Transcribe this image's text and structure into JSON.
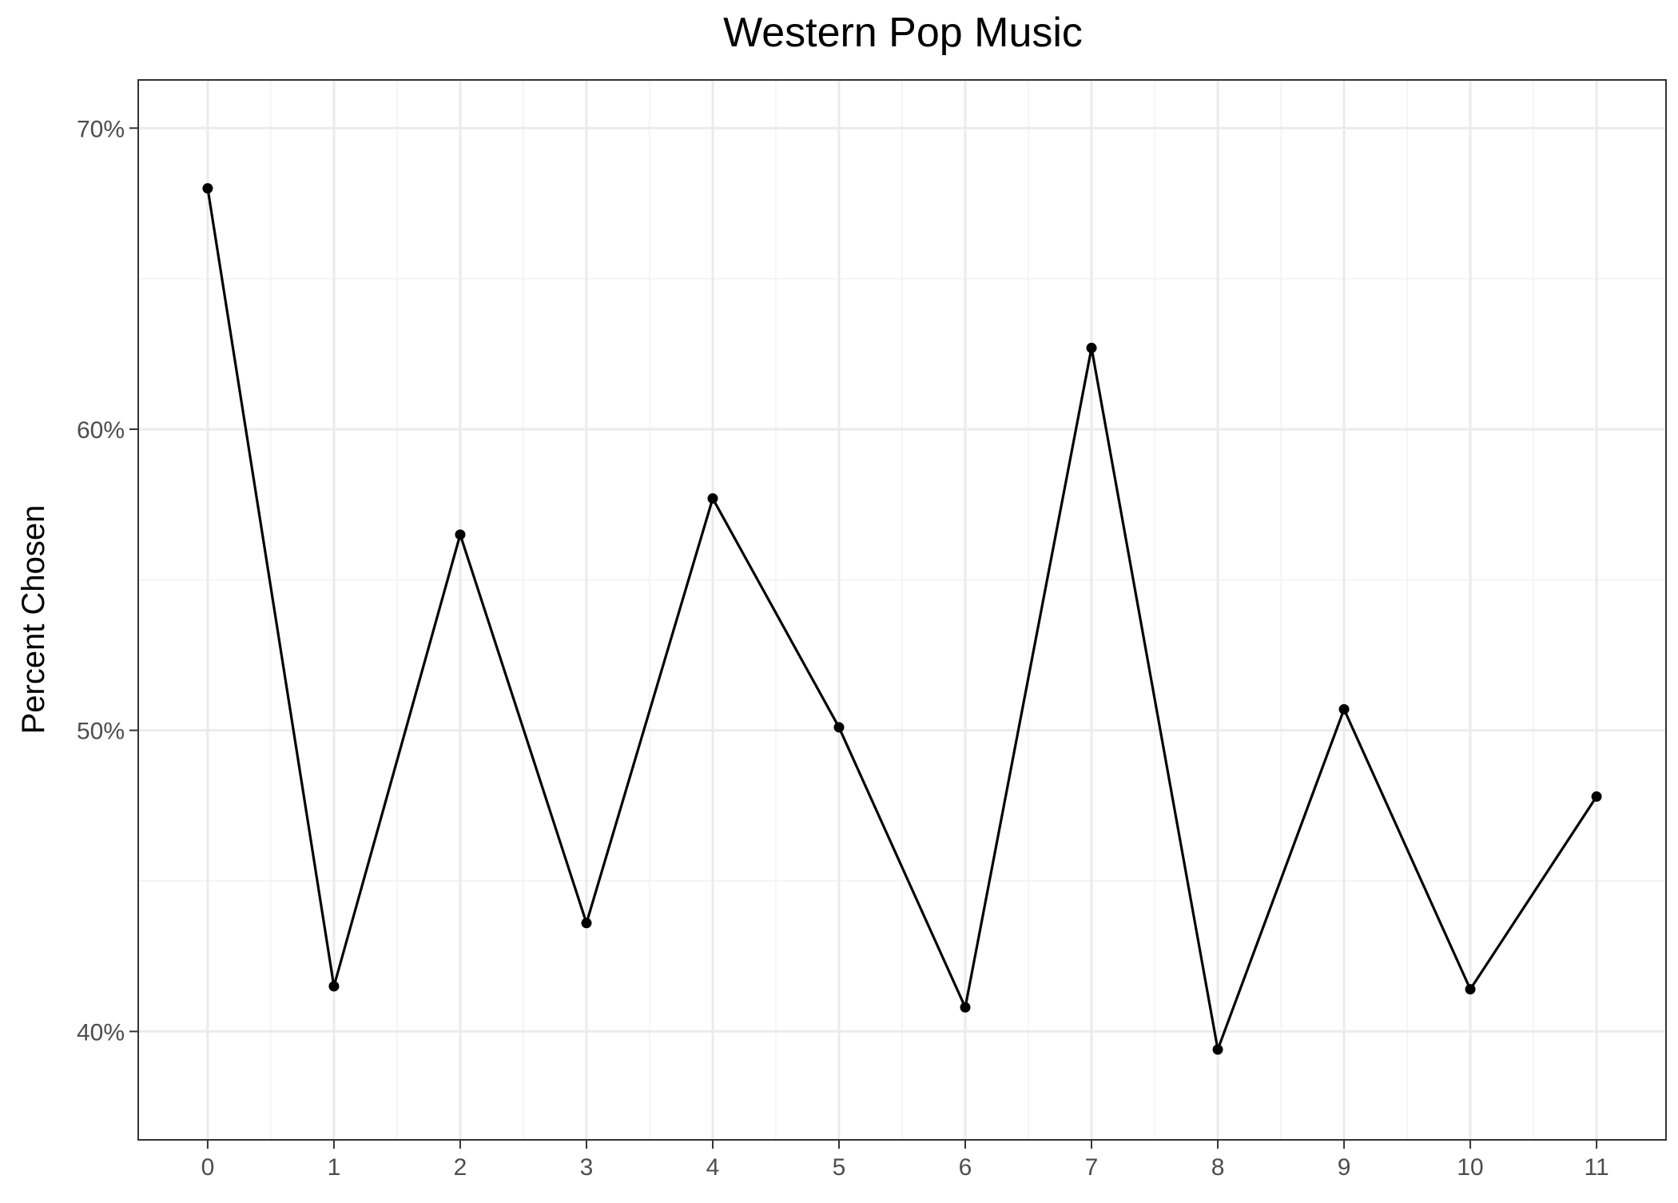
{
  "chart_data": {
    "type": "line",
    "title": "Western Pop Music",
    "xlabel": "",
    "ylabel": "Percent Chosen",
    "x": [
      0,
      1,
      2,
      3,
      4,
      5,
      6,
      7,
      8,
      9,
      10,
      11
    ],
    "x_tick_labels": [
      "0",
      "1",
      "2",
      "3",
      "4",
      "5",
      "6",
      "7",
      "8",
      "9",
      "10",
      "11"
    ],
    "y_ticks": [
      40,
      50,
      60,
      70
    ],
    "y_tick_labels": [
      "40%",
      "50%",
      "60%",
      "70%"
    ],
    "xlim": [
      -0.55,
      11.55
    ],
    "ylim": [
      36.4,
      71.6
    ],
    "series": [
      {
        "values": [
          68.0,
          41.5,
          56.5,
          43.6,
          57.7,
          50.1,
          40.8,
          62.7,
          39.4,
          50.7,
          41.4,
          47.8
        ]
      }
    ],
    "grid": true,
    "legend": "none",
    "colors": {
      "line": "#000000",
      "grid": "#ebebeb",
      "panel_border": "#333333"
    }
  }
}
